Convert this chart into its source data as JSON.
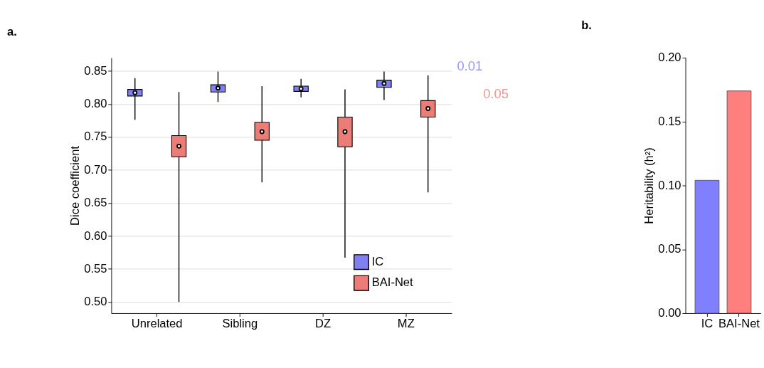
{
  "chart_data": [
    {
      "type": "box",
      "title": "a.",
      "ylabel": "Dice coefficient",
      "categories": [
        "Unrelated",
        "Sibling",
        "DZ",
        "MZ"
      ],
      "series": [
        {
          "name": "IC",
          "color": "#8080f0",
          "boxes": [
            {
              "low": 0.776,
              "q1": 0.812,
              "median": 0.817,
              "q3": 0.822,
              "high": 0.839
            },
            {
              "low": 0.803,
              "q1": 0.818,
              "median": 0.824,
              "q3": 0.829,
              "high": 0.849
            },
            {
              "low": 0.81,
              "q1": 0.819,
              "median": 0.823,
              "q3": 0.827,
              "high": 0.838
            },
            {
              "low": 0.806,
              "q1": 0.825,
              "median": 0.831,
              "q3": 0.836,
              "high": 0.849
            }
          ]
        },
        {
          "name": "BAI-Net",
          "color": "#ec7c76",
          "boxes": [
            {
              "low": 0.5,
              "q1": 0.72,
              "median": 0.736,
              "q3": 0.752,
              "high": 0.818
            },
            {
              "low": 0.681,
              "q1": 0.745,
              "median": 0.758,
              "q3": 0.772,
              "high": 0.827
            },
            {
              "low": 0.567,
              "q1": 0.735,
              "median": 0.758,
              "q3": 0.78,
              "high": 0.822
            },
            {
              "low": 0.666,
              "q1": 0.78,
              "median": 0.793,
              "q3": 0.805,
              "high": 0.843
            }
          ]
        }
      ],
      "ylim": [
        0.483,
        0.87
      ],
      "yticks": [
        {
          "value": 0.5,
          "label": "0.50"
        },
        0.55,
        {
          "value": 0.6,
          "label": "0.60"
        },
        0.65,
        {
          "value": 0.7,
          "label": "0.70"
        },
        0.75,
        {
          "value": 0.8,
          "label": "0.80"
        },
        0.85
      ],
      "grid": "y",
      "legend": "bottom right",
      "annotations": [
        "0.01",
        "0.05"
      ]
    },
    {
      "type": "bar",
      "title": "b.",
      "ylabel": "Heritability (h²)",
      "categories": [
        "IC",
        "BAI-Net"
      ],
      "values": [
        0.104,
        0.174
      ],
      "colors": [
        "#8080ff",
        "#ff7f7f"
      ],
      "ylim": [
        0,
        0.2
      ],
      "yticks": [
        {
          "value": 0,
          "label": "0.00"
        },
        0.05,
        {
          "value": 0.1,
          "label": "0.10"
        },
        0.15,
        {
          "value": 0.2,
          "label": "0.20"
        }
      ],
      "grid": false
    }
  ]
}
